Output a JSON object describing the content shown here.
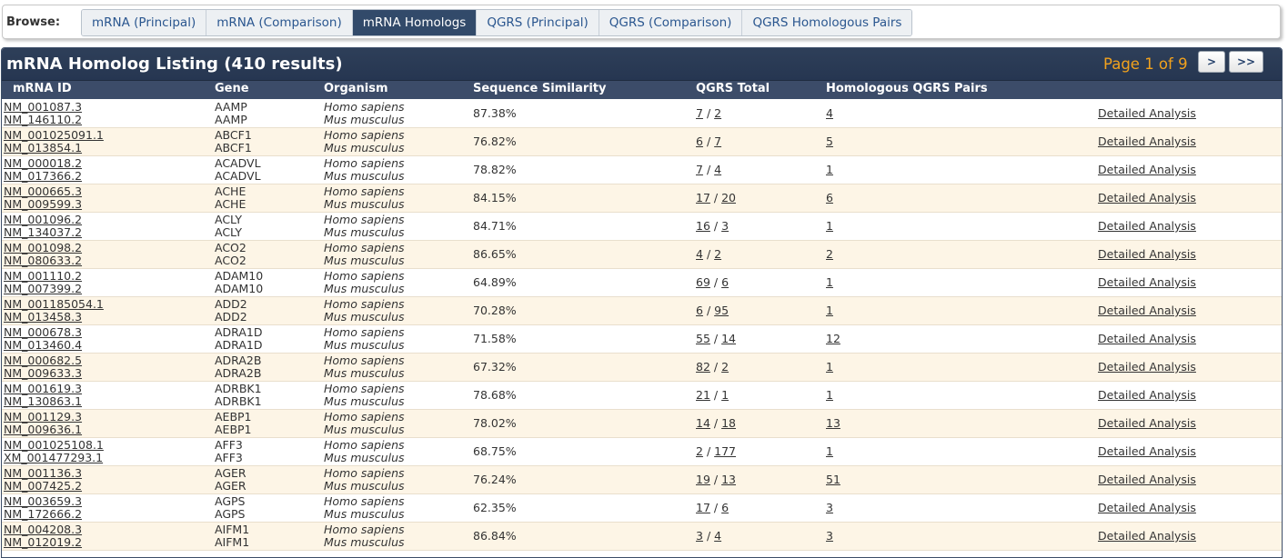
{
  "browse": {
    "label": "Browse:",
    "tabs": [
      {
        "label": "mRNA (Principal)",
        "active": false
      },
      {
        "label": "mRNA (Comparison)",
        "active": false
      },
      {
        "label": "mRNA Homologs",
        "active": true
      },
      {
        "label": "QGRS (Principal)",
        "active": false
      },
      {
        "label": "QGRS (Comparison)",
        "active": false
      },
      {
        "label": "QGRS Homologous Pairs",
        "active": false
      }
    ]
  },
  "listing": {
    "title": "mRNA Homolog Listing (410 results)",
    "page_indicator": "Page 1 of 9",
    "next_label": ">",
    "last_label": ">>",
    "columns": [
      "mRNA ID",
      "Gene",
      "Organism",
      "Sequence Similarity",
      "QGRS Total",
      "Homologous QGRS Pairs"
    ],
    "detail_label": "Detailed Analysis",
    "qgrs_separator": "/",
    "rows": [
      {
        "id1": "NM_001087.3",
        "id2": "NM_146110.2",
        "gene1": "AAMP",
        "gene2": "AAMP",
        "org1": "Homo sapiens",
        "org2": "Mus musculus",
        "similarity": "87.38%",
        "qgrs1": "7",
        "qgrs2": "2",
        "pairs": "4"
      },
      {
        "id1": "NM_001025091.1",
        "id2": "NM_013854.1",
        "gene1": "ABCF1",
        "gene2": "ABCF1",
        "org1": "Homo sapiens",
        "org2": "Mus musculus",
        "similarity": "76.82%",
        "qgrs1": "6",
        "qgrs2": "7",
        "pairs": "5"
      },
      {
        "id1": "NM_000018.2",
        "id2": "NM_017366.2",
        "gene1": "ACADVL",
        "gene2": "ACADVL",
        "org1": "Homo sapiens",
        "org2": "Mus musculus",
        "similarity": "78.82%",
        "qgrs1": "7",
        "qgrs2": "4",
        "pairs": "1"
      },
      {
        "id1": "NM_000665.3",
        "id2": "NM_009599.3",
        "gene1": "ACHE",
        "gene2": "ACHE",
        "org1": "Homo sapiens",
        "org2": "Mus musculus",
        "similarity": "84.15%",
        "qgrs1": "17",
        "qgrs2": "20",
        "pairs": "6"
      },
      {
        "id1": "NM_001096.2",
        "id2": "NM_134037.2",
        "gene1": "ACLY",
        "gene2": "ACLY",
        "org1": "Homo sapiens",
        "org2": "Mus musculus",
        "similarity": "84.71%",
        "qgrs1": "16",
        "qgrs2": "3",
        "pairs": "1"
      },
      {
        "id1": "NM_001098.2",
        "id2": "NM_080633.2",
        "gene1": "ACO2",
        "gene2": "ACO2",
        "org1": "Homo sapiens",
        "org2": "Mus musculus",
        "similarity": "86.65%",
        "qgrs1": "4",
        "qgrs2": "2",
        "pairs": "2"
      },
      {
        "id1": "NM_001110.2",
        "id2": "NM_007399.2",
        "gene1": "ADAM10",
        "gene2": "ADAM10",
        "org1": "Homo sapiens",
        "org2": "Mus musculus",
        "similarity": "64.89%",
        "qgrs1": "69",
        "qgrs2": "6",
        "pairs": "1"
      },
      {
        "id1": "NM_001185054.1",
        "id2": "NM_013458.3",
        "gene1": "ADD2",
        "gene2": "ADD2",
        "org1": "Homo sapiens",
        "org2": "Mus musculus",
        "similarity": "70.28%",
        "qgrs1": "6",
        "qgrs2": "95",
        "pairs": "1"
      },
      {
        "id1": "NM_000678.3",
        "id2": "NM_013460.4",
        "gene1": "ADRA1D",
        "gene2": "ADRA1D",
        "org1": "Homo sapiens",
        "org2": "Mus musculus",
        "similarity": "71.58%",
        "qgrs1": "55",
        "qgrs2": "14",
        "pairs": "12"
      },
      {
        "id1": "NM_000682.5",
        "id2": "NM_009633.3",
        "gene1": "ADRA2B",
        "gene2": "ADRA2B",
        "org1": "Homo sapiens",
        "org2": "Mus musculus",
        "similarity": "67.32%",
        "qgrs1": "82",
        "qgrs2": "2",
        "pairs": "1"
      },
      {
        "id1": "NM_001619.3",
        "id2": "NM_130863.1",
        "gene1": "ADRBK1",
        "gene2": "ADRBK1",
        "org1": "Homo sapiens",
        "org2": "Mus musculus",
        "similarity": "78.68%",
        "qgrs1": "21",
        "qgrs2": "1",
        "pairs": "1"
      },
      {
        "id1": "NM_001129.3",
        "id2": "NM_009636.1",
        "gene1": "AEBP1",
        "gene2": "AEBP1",
        "org1": "Homo sapiens",
        "org2": "Mus musculus",
        "similarity": "78.02%",
        "qgrs1": "14",
        "qgrs2": "18",
        "pairs": "13"
      },
      {
        "id1": "NM_001025108.1",
        "id2": "XM_001477293.1",
        "gene1": "AFF3",
        "gene2": "AFF3",
        "org1": "Homo sapiens",
        "org2": "Mus musculus",
        "similarity": "68.75%",
        "qgrs1": "2",
        "qgrs2": "177",
        "pairs": "1"
      },
      {
        "id1": "NM_001136.3",
        "id2": "NM_007425.2",
        "gene1": "AGER",
        "gene2": "AGER",
        "org1": "Homo sapiens",
        "org2": "Mus musculus",
        "similarity": "76.24%",
        "qgrs1": "19",
        "qgrs2": "13",
        "pairs": "51"
      },
      {
        "id1": "NM_003659.3",
        "id2": "NM_172666.2",
        "gene1": "AGPS",
        "gene2": "AGPS",
        "org1": "Homo sapiens",
        "org2": "Mus musculus",
        "similarity": "62.35%",
        "qgrs1": "17",
        "qgrs2": "6",
        "pairs": "3"
      },
      {
        "id1": "NM_004208.3",
        "id2": "NM_012019.2",
        "gene1": "AIFM1",
        "gene2": "AIFM1",
        "org1": "Homo sapiens",
        "org2": "Mus musculus",
        "similarity": "86.84%",
        "qgrs1": "3",
        "qgrs2": "4",
        "pairs": "3"
      }
    ]
  }
}
